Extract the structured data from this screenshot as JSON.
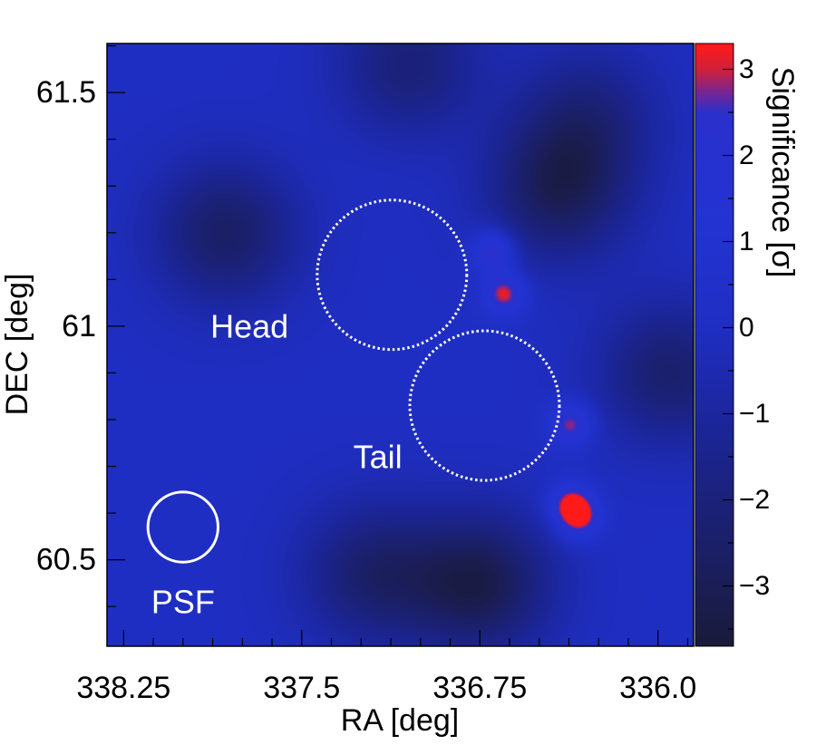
{
  "chart_data": {
    "type": "heatmap",
    "xlabel": "RA [deg]",
    "ylabel": "DEC [deg]",
    "colorbar_label": "Significance [σ]",
    "xlim": [
      338.32,
      335.85
    ],
    "ylim": [
      60.315,
      61.605
    ],
    "x_ticks": [
      338.25,
      337.5,
      336.75,
      336.0
    ],
    "x_tick_labels": [
      "338.25",
      "337.5",
      "336.75",
      "336.0"
    ],
    "y_ticks": [
      60.5,
      61.0,
      61.5
    ],
    "y_tick_labels": [
      "60.5",
      "61",
      "61.5"
    ],
    "colorbar_range": [
      -3.7,
      3.3
    ],
    "colorbar_ticks": [
      -3,
      -2,
      -1,
      0,
      1,
      2,
      3
    ],
    "colorbar_tick_labels": [
      "−3",
      "−2",
      "−1",
      "0",
      "1",
      "2",
      "3"
    ],
    "background_level": 0.0,
    "colorscale": [
      {
        "value": -3.7,
        "color": "#1a1a3a"
      },
      {
        "value": -2.6,
        "color": "#1b1f66"
      },
      {
        "value": -1.2,
        "color": "#1b2597"
      },
      {
        "value": 0.0,
        "color": "#1f2ec2"
      },
      {
        "value": 1.2,
        "color": "#2333d2"
      },
      {
        "value": 2.5,
        "color": "#2a30cc"
      },
      {
        "value": 2.75,
        "color": "#7a2590"
      },
      {
        "value": 3.0,
        "color": "#d0203c"
      },
      {
        "value": 3.3,
        "color": "#ff1a1a"
      }
    ],
    "hotspots": [
      {
        "ra": 336.65,
        "dec": 61.07,
        "sig": 3.3
      },
      {
        "ra": 336.7,
        "dec": 61.16,
        "sig": 2.9
      },
      {
        "ra": 336.37,
        "dec": 60.79,
        "sig": 3.0
      },
      {
        "ra": 336.37,
        "dec": 60.62,
        "sig": 3.1
      },
      {
        "ra": 336.33,
        "dec": 60.59,
        "sig": 2.9
      }
    ],
    "coldspots": [
      {
        "ra": 337.82,
        "dec": 61.2,
        "sig": -2.6
      },
      {
        "ra": 336.42,
        "dec": 61.29,
        "sig": -2.8
      },
      {
        "ra": 336.75,
        "dec": 60.45,
        "sig": -3.2
      },
      {
        "ra": 337.2,
        "dec": 60.47,
        "sig": -2.4
      },
      {
        "ra": 335.95,
        "dec": 60.9,
        "sig": -2.4
      },
      {
        "ra": 337.05,
        "dec": 61.56,
        "sig": -2.1
      },
      {
        "ra": 336.3,
        "dec": 61.45,
        "sig": -1.8
      }
    ],
    "annotations": [
      {
        "label": "Head",
        "ra": 337.12,
        "dec": 61.11,
        "radius_deg": 0.16,
        "style": "dotted",
        "label_ra": 337.72,
        "label_dec": 61.0
      },
      {
        "label": "Tail",
        "ra": 336.73,
        "dec": 60.83,
        "radius_deg": 0.16,
        "style": "dotted",
        "label_ra": 337.18,
        "label_dec": 60.72
      },
      {
        "label": "PSF",
        "ra": 338.0,
        "dec": 60.57,
        "radius_deg": 0.075,
        "style": "solid",
        "label_ra": 338.0,
        "label_dec": 60.41
      }
    ]
  }
}
